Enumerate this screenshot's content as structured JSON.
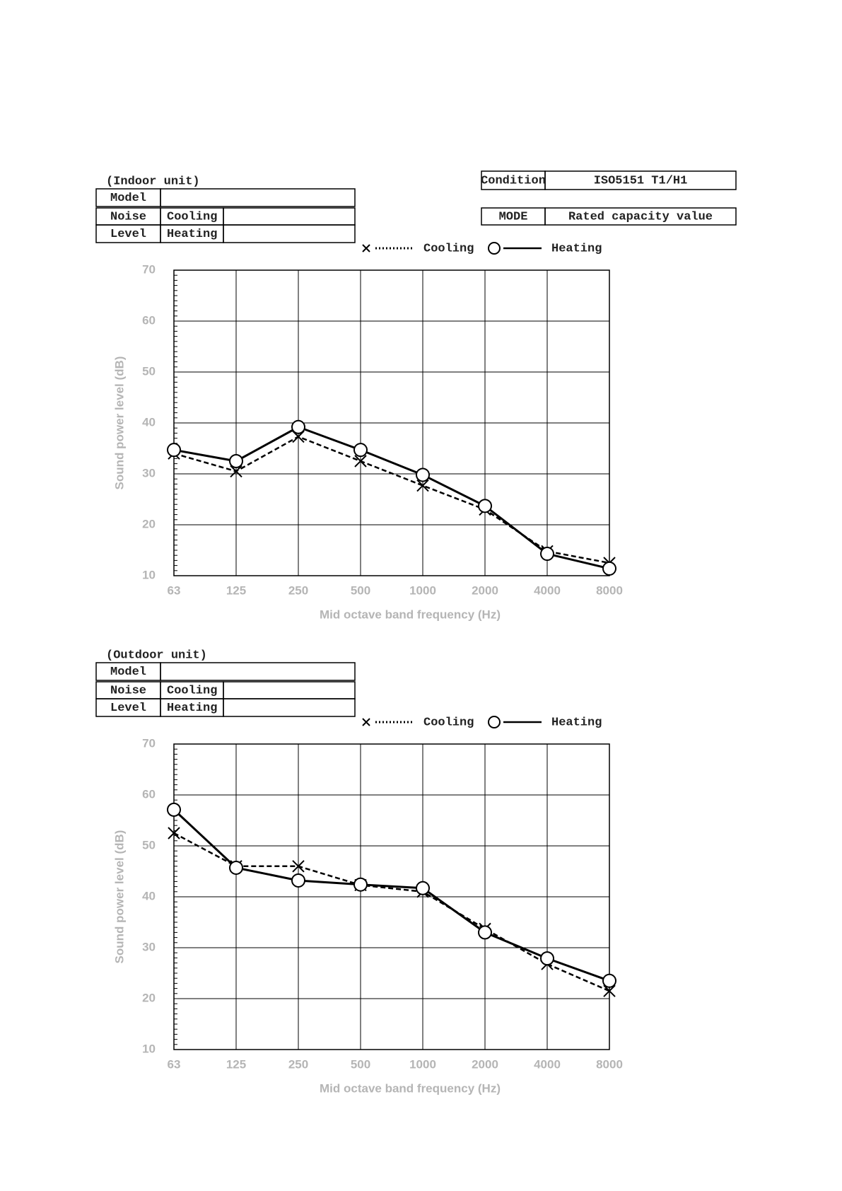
{
  "condition_table": {
    "rows": [
      [
        "Condition",
        "ISO5151 T1/H1"
      ],
      [
        "MODE",
        "Rated capacity value"
      ]
    ]
  },
  "sections": [
    {
      "title": "(Indoor unit)",
      "table": {
        "rows": [
          [
            "Model"
          ],
          [
            "Noise",
            "Cooling"
          ],
          [
            "Level",
            "Heating"
          ]
        ]
      }
    },
    {
      "title": "(Outdoor unit)",
      "table": {
        "rows": [
          [
            "Model"
          ],
          [
            "Noise",
            "Cooling"
          ],
          [
            "Level",
            "Heating"
          ]
        ]
      }
    }
  ],
  "chart_data": [
    {
      "type": "line",
      "xlabel": "Mid octave band frequency  (Hz)",
      "ylabel": "Sound power level  (dB)",
      "categories": [
        "63",
        "125",
        "250",
        "500",
        "1000",
        "2000",
        "4000",
        "8000"
      ],
      "series": [
        {
          "name": "Cooling",
          "color": "#000000",
          "dashed": true,
          "marker": "x",
          "values": [
            34,
            30.5,
            37.3,
            32.5,
            27.7,
            23,
            14.8,
            12.5
          ]
        },
        {
          "name": "Heating",
          "color": "#000000",
          "dashed": false,
          "marker": "circle",
          "values": [
            34.7,
            32.5,
            39.2,
            34.7,
            29.8,
            23.7,
            14.3,
            11.4
          ]
        }
      ],
      "ylim": [
        10,
        70
      ],
      "yticks": [
        10,
        20,
        30,
        40,
        50,
        60,
        70
      ],
      "grid": true
    },
    {
      "type": "line",
      "xlabel": "Mid octave band frequency  (Hz)",
      "ylabel": "Sound power level  (dB)",
      "categories": [
        "63",
        "125",
        "250",
        "500",
        "1000",
        "2000",
        "4000",
        "8000"
      ],
      "series": [
        {
          "name": "Cooling",
          "color": "#000000",
          "dashed": true,
          "marker": "x",
          "values": [
            52.5,
            46,
            46,
            42.3,
            41,
            33.7,
            26.8,
            21.5
          ]
        },
        {
          "name": "Heating",
          "color": "#000000",
          "dashed": false,
          "marker": "circle",
          "values": [
            57.1,
            45.7,
            43.2,
            42.4,
            41.7,
            33,
            27.9,
            23.5
          ]
        }
      ],
      "ylim": [
        10,
        70
      ],
      "yticks": [
        10,
        20,
        30,
        40,
        50,
        60,
        70
      ],
      "grid": true
    }
  ]
}
